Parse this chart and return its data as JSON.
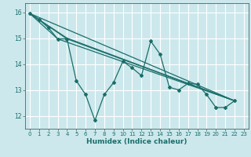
{
  "xlabel": "Humidex (Indice chaleur)",
  "bg_color": "#cce8ec",
  "grid_color": "#ffffff",
  "line_color": "#1a6e6a",
  "xlim": [
    -0.5,
    23.5
  ],
  "ylim": [
    11.5,
    16.35
  ],
  "yticks": [
    12,
    13,
    14,
    15,
    16
  ],
  "xticks": [
    0,
    1,
    2,
    3,
    4,
    5,
    6,
    7,
    8,
    9,
    10,
    11,
    12,
    13,
    14,
    15,
    16,
    17,
    18,
    19,
    20,
    21,
    22,
    23
  ],
  "series": [
    [
      0,
      15.95
    ],
    [
      1,
      15.72
    ],
    [
      2,
      15.4
    ],
    [
      3,
      14.97
    ],
    [
      4,
      14.97
    ],
    [
      5,
      13.35
    ],
    [
      6,
      12.82
    ],
    [
      7,
      11.82
    ],
    [
      8,
      12.82
    ],
    [
      9,
      13.28
    ],
    [
      10,
      14.1
    ],
    [
      11,
      13.85
    ],
    [
      12,
      13.55
    ],
    [
      13,
      14.88
    ],
    [
      14,
      14.38
    ],
    [
      15,
      13.1
    ],
    [
      16,
      13.0
    ],
    [
      17,
      13.25
    ],
    [
      18,
      13.22
    ],
    [
      19,
      12.82
    ],
    [
      20,
      12.32
    ],
    [
      21,
      12.32
    ],
    [
      22,
      12.58
    ]
  ],
  "trend_lines": [
    [
      [
        0,
        15.95
      ],
      [
        22,
        12.58
      ]
    ],
    [
      [
        0,
        15.95
      ],
      [
        3,
        14.97
      ],
      [
        22,
        12.58
      ]
    ],
    [
      [
        0,
        15.95
      ],
      [
        4,
        15.0
      ],
      [
        22,
        12.58
      ]
    ],
    [
      [
        0,
        15.95
      ],
      [
        4,
        14.97
      ],
      [
        22,
        12.58
      ]
    ]
  ]
}
